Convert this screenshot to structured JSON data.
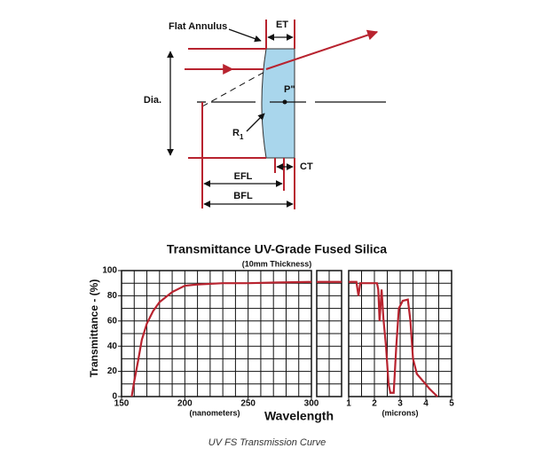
{
  "diagram": {
    "labels": {
      "flat_annulus": "Flat Annulus",
      "et": "ET",
      "dia": "Dia.",
      "p": "P\"",
      "r": "R",
      "r_sub": "1",
      "efl": "EFL",
      "bfl": "BFL",
      "ct": "CT"
    }
  },
  "chart_data": [
    {
      "type": "line",
      "title": "Transmittance UV-Grade Fused Silica",
      "subtitle": "(10mm Thickness)",
      "y_label": "Transmittance - (%)",
      "x_label": "Wavelength",
      "x_unit": "(nanometers)",
      "color": "#b8232f",
      "x": [
        158,
        160,
        163,
        166,
        170,
        175,
        180,
        190,
        200,
        210,
        230,
        250,
        270,
        300
      ],
      "values": [
        0,
        12,
        28,
        45,
        58,
        68,
        75,
        83,
        88,
        89,
        90,
        90,
        90.5,
        91
      ],
      "xlim": [
        150,
        300
      ],
      "xticks": [
        150,
        200,
        250,
        300
      ],
      "x_grid": [
        150,
        160,
        170,
        180,
        190,
        200,
        210,
        220,
        230,
        240,
        250,
        260,
        270,
        280,
        290,
        300
      ],
      "ylim": [
        0,
        100
      ],
      "yticks": [
        0,
        20,
        40,
        60,
        80,
        100
      ],
      "y_grid": [
        0,
        10,
        20,
        30,
        40,
        50,
        60,
        70,
        80,
        90,
        100
      ]
    },
    {
      "type": "line",
      "x_unit": "(microns)",
      "color": "#b8232f",
      "x": [
        1.0,
        1.3,
        1.38,
        1.45,
        2.1,
        2.15,
        2.2,
        2.28,
        2.35,
        2.45,
        2.55,
        2.62,
        2.75,
        2.85,
        2.95,
        3.1,
        3.3,
        3.4,
        3.5,
        3.65,
        3.9,
        4.15,
        4.45
      ],
      "values": [
        91,
        91,
        80,
        90,
        90,
        85,
        60,
        85,
        62,
        40,
        10,
        3,
        3,
        40,
        70,
        76,
        77,
        60,
        30,
        18,
        12,
        6,
        0
      ],
      "xlim": [
        1,
        5
      ],
      "xticks": [
        1,
        2,
        3,
        4,
        5
      ],
      "x_grid": [
        1,
        1.5,
        2,
        2.5,
        3,
        3.5,
        4,
        4.5,
        5
      ],
      "ylim": [
        0,
        100
      ],
      "y_grid": [
        0,
        10,
        20,
        30,
        40,
        50,
        60,
        70,
        80,
        90,
        100
      ]
    }
  ],
  "caption": "UV FS Transmission Curve"
}
